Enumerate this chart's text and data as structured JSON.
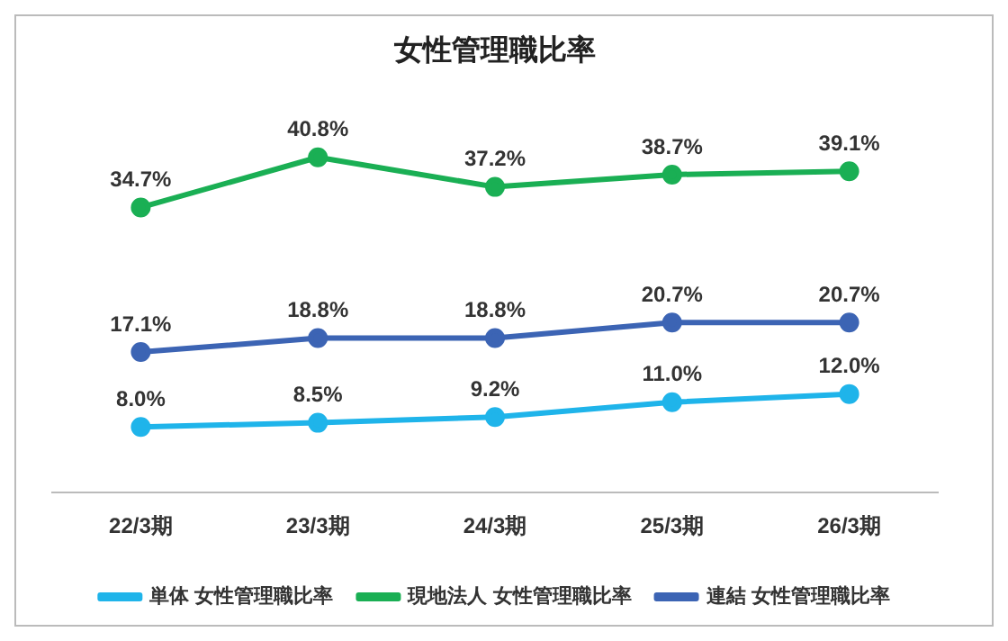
{
  "chart_data": {
    "type": "line",
    "title": "女性管理職比率",
    "categories": [
      "22/3期",
      "23/3期",
      "24/3期",
      "25/3期",
      "26/3期"
    ],
    "series": [
      {
        "name": "単体 女性管理職比率",
        "color": "#1fb4ea",
        "values": [
          8.0,
          8.5,
          9.2,
          11.0,
          12.0
        ],
        "value_labels": [
          "8.0%",
          "8.5%",
          "9.2%",
          "11.0%",
          "12.0%"
        ]
      },
      {
        "name": "現地法人 女性管理職比率",
        "color": "#1aaf54",
        "values": [
          34.7,
          40.8,
          37.2,
          38.7,
          39.1
        ],
        "value_labels": [
          "34.7%",
          "40.8%",
          "37.2%",
          "38.7%",
          "39.1%"
        ]
      },
      {
        "name": "連結 女性管理職比率",
        "color": "#3c64b4",
        "values": [
          17.1,
          18.8,
          18.8,
          20.7,
          20.7
        ],
        "value_labels": [
          "17.1%",
          "18.8%",
          "18.8%",
          "20.7%",
          "20.7%"
        ]
      }
    ],
    "grid": false,
    "legend": "bottom",
    "marker": "circle",
    "line_style": "solid",
    "tick_labels": "x"
  }
}
